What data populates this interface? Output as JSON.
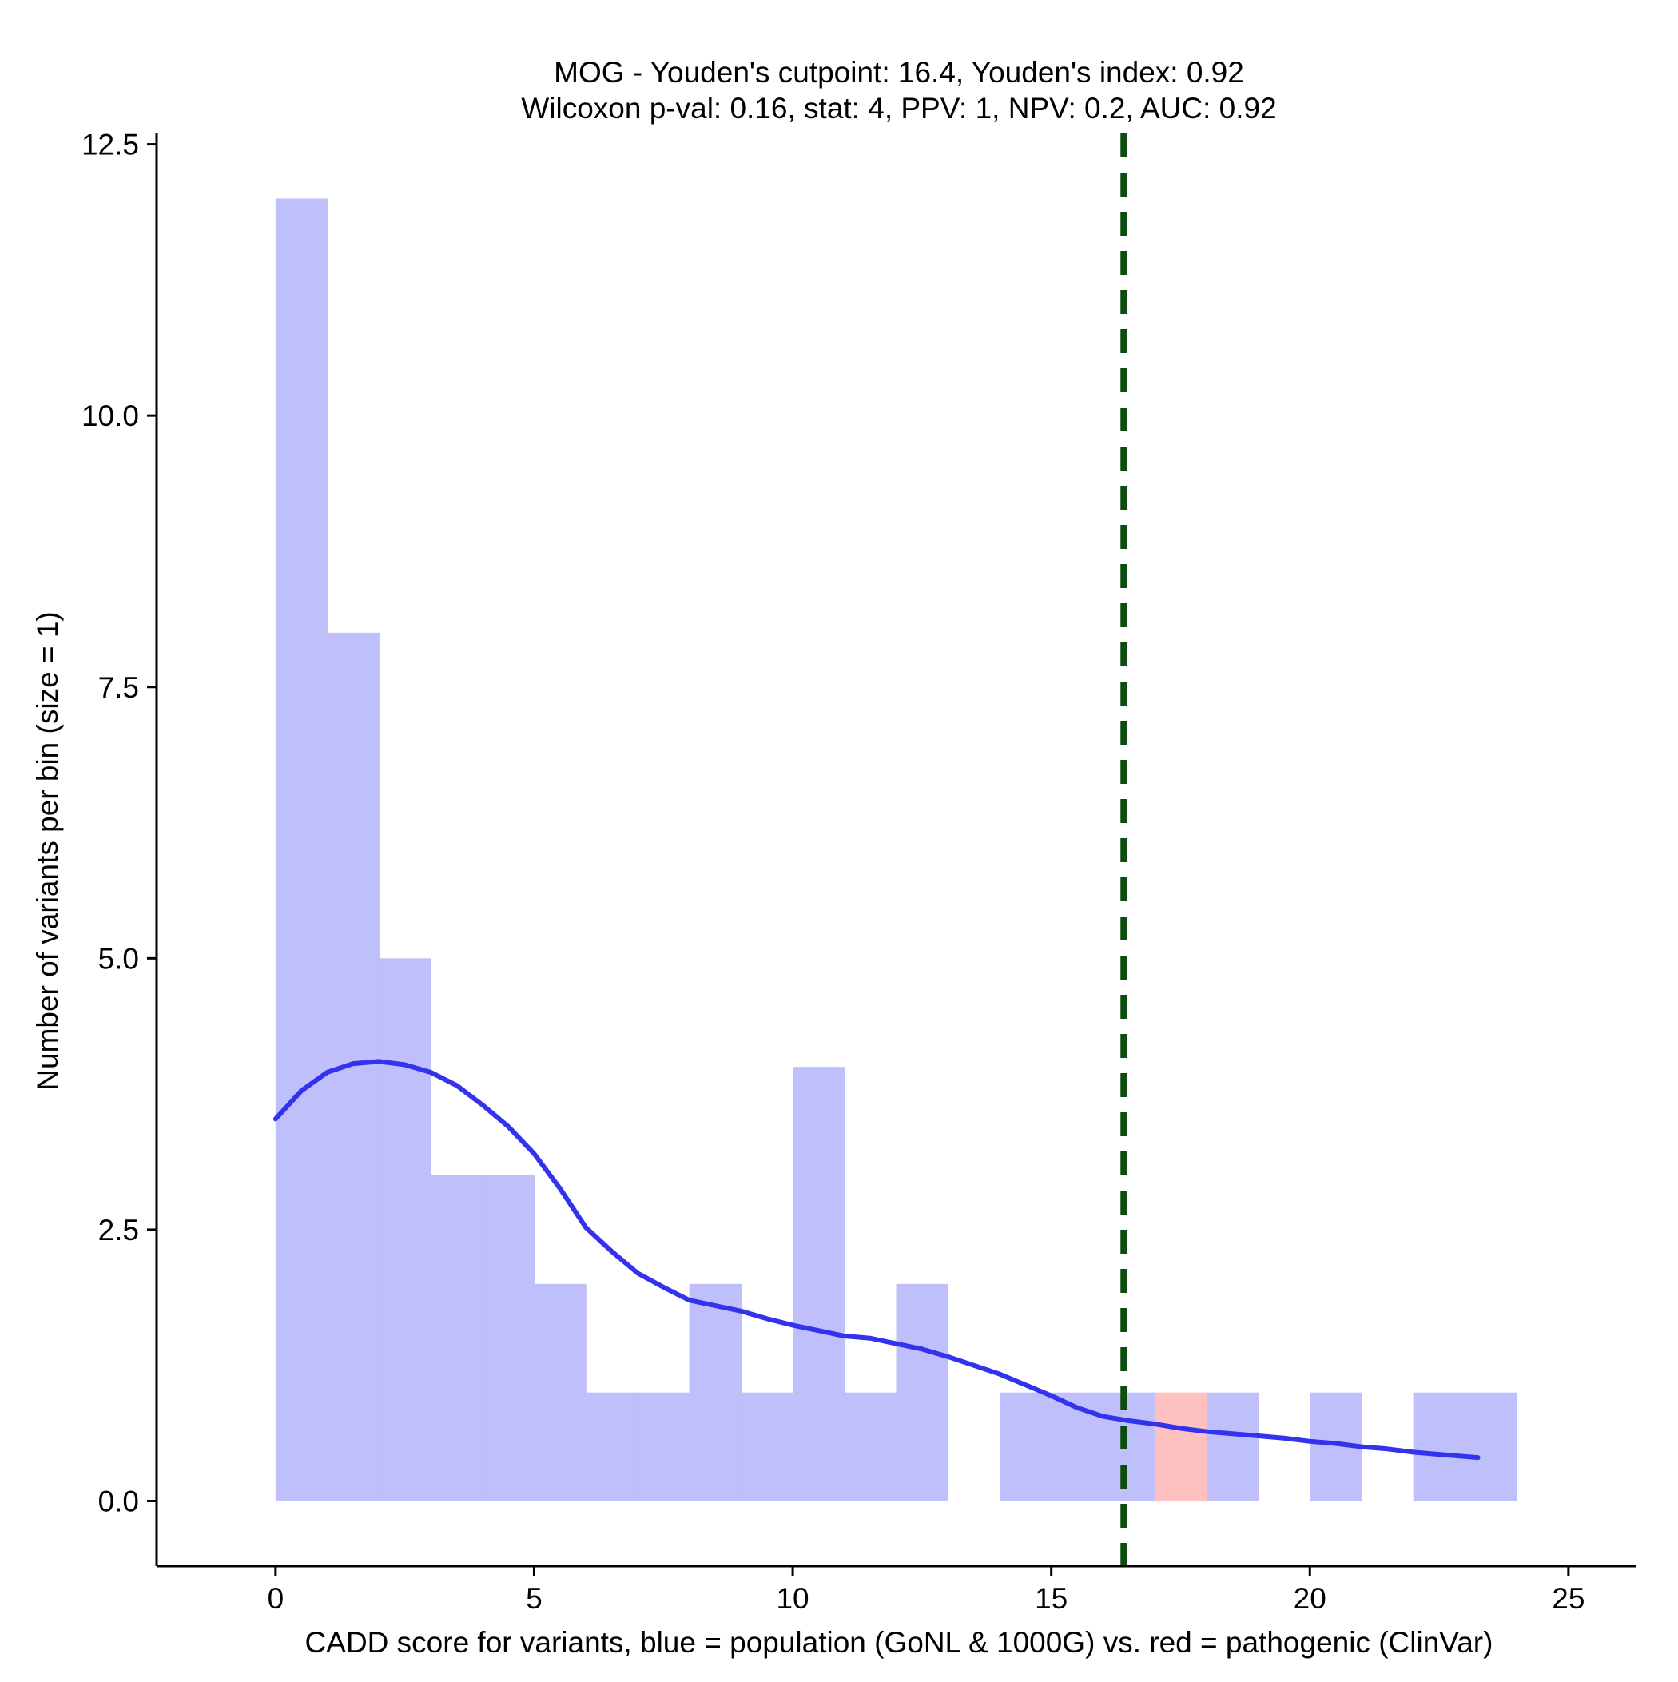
{
  "chart_data": {
    "type": "bar",
    "title": "MOG - Youden's cutpoint: 16.4, Youden's index: 0.92",
    "subtitle": "Wilcoxon p-val: 0.16, stat: 4, PPV: 1, NPV: 0.2, AUC: 0.92",
    "xlabel": "CADD score for variants, blue = population (GoNL & 1000G) vs. red = pathogenic (ClinVar)",
    "ylabel": "Number of variants per bin (size = 1)",
    "xlim": [
      -2.3,
      26.3
    ],
    "ylim": [
      -0.6,
      12.6
    ],
    "x_ticks": [
      0,
      5,
      10,
      15,
      20,
      25
    ],
    "x_tick_labels": [
      "0",
      "5",
      "10",
      "15",
      "20",
      "25"
    ],
    "y_ticks": [
      0,
      2.5,
      5,
      7.5,
      10,
      12.5
    ],
    "y_tick_labels": [
      "0.0",
      "2.5",
      "5.0",
      "7.5",
      "10.0",
      "12.5"
    ],
    "bin_width": 1,
    "series": [
      {
        "name": "population (GoNL & 1000G)",
        "color": "#bfbffb",
        "bins": [
          {
            "x0": 0,
            "x1": 1,
            "count": 12
          },
          {
            "x0": 1,
            "x1": 2,
            "count": 8
          },
          {
            "x0": 2,
            "x1": 3,
            "count": 5
          },
          {
            "x0": 3,
            "x1": 4,
            "count": 3
          },
          {
            "x0": 4,
            "x1": 5,
            "count": 3
          },
          {
            "x0": 5,
            "x1": 6,
            "count": 2
          },
          {
            "x0": 6,
            "x1": 7,
            "count": 1
          },
          {
            "x0": 7,
            "x1": 8,
            "count": 1
          },
          {
            "x0": 8,
            "x1": 9,
            "count": 2
          },
          {
            "x0": 9,
            "x1": 10,
            "count": 1
          },
          {
            "x0": 10,
            "x1": 11,
            "count": 4
          },
          {
            "x0": 11,
            "x1": 12,
            "count": 1
          },
          {
            "x0": 12,
            "x1": 13,
            "count": 2
          },
          {
            "x0": 14,
            "x1": 15,
            "count": 1
          },
          {
            "x0": 15,
            "x1": 16,
            "count": 1
          },
          {
            "x0": 16,
            "x1": 17,
            "count": 1
          },
          {
            "x0": 18,
            "x1": 19,
            "count": 1
          },
          {
            "x0": 20,
            "x1": 21,
            "count": 1
          },
          {
            "x0": 22,
            "x1": 23,
            "count": 1
          },
          {
            "x0": 23,
            "x1": 24,
            "count": 1
          }
        ]
      },
      {
        "name": "pathogenic (ClinVar)",
        "color": "#ffc0c0",
        "bins": [
          {
            "x0": 17,
            "x1": 18,
            "count": 1
          }
        ]
      }
    ],
    "density_curve": {
      "name": "population density (scaled)",
      "color": "#3333ee",
      "x": [
        0,
        0.5,
        1,
        1.5,
        2,
        2.5,
        3,
        3.5,
        4,
        4.5,
        5,
        5.5,
        6,
        6.5,
        7,
        7.5,
        8,
        8.5,
        9,
        9.5,
        10,
        10.5,
        11,
        11.5,
        12,
        12.5,
        13,
        13.5,
        14,
        14.5,
        15,
        15.5,
        16,
        16.5,
        17,
        17.5,
        18,
        18.5,
        19,
        19.5,
        20,
        20.5,
        21,
        21.5,
        22,
        22.5,
        23,
        23.25
      ],
      "y": [
        3.52,
        3.78,
        3.95,
        4.03,
        4.05,
        4.02,
        3.95,
        3.83,
        3.65,
        3.45,
        3.2,
        2.88,
        2.52,
        2.3,
        2.1,
        1.97,
        1.85,
        1.8,
        1.75,
        1.68,
        1.62,
        1.57,
        1.52,
        1.5,
        1.45,
        1.4,
        1.33,
        1.25,
        1.17,
        1.07,
        0.97,
        0.86,
        0.78,
        0.74,
        0.71,
        0.67,
        0.64,
        0.62,
        0.6,
        0.58,
        0.55,
        0.53,
        0.5,
        0.48,
        0.45,
        0.43,
        0.41,
        0.4
      ]
    },
    "cutpoint": {
      "x": 16.4,
      "label": "Youden's cutpoint",
      "color": "#0d4d0d",
      "style": "dashed"
    },
    "grid": false,
    "legend": "none"
  }
}
